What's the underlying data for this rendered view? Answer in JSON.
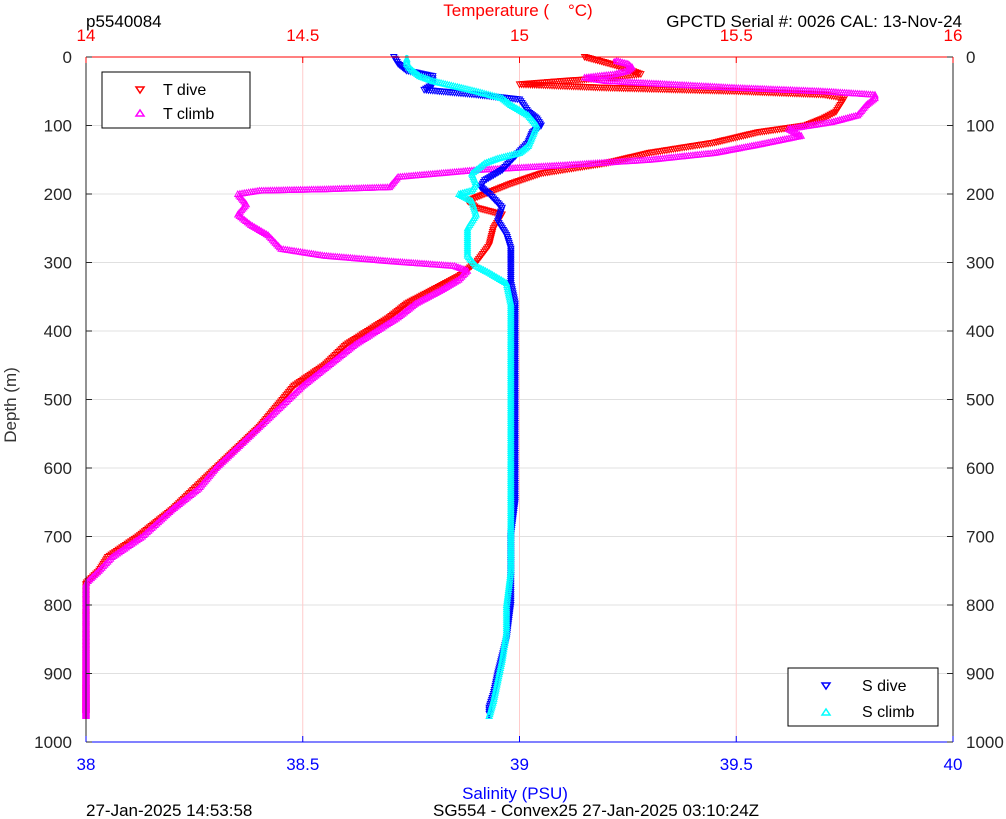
{
  "header": {
    "left": "p5540084",
    "right": "GPCTD Serial #: 0026 CAL: 13-Nov-24"
  },
  "footer": {
    "left": "27-Jan-2025 14:53:58",
    "center": "SG554 - Convex25 27-Jan-2025 03:10:24Z"
  },
  "colors": {
    "t_dive": "#ff0000",
    "t_climb": "#ff00ff",
    "s_dive": "#0000ff",
    "s_climb": "#00ffff",
    "temp_axis": "#ff0000",
    "sal_axis": "#0000ff",
    "temp_grid": "#ffcccc",
    "depth_grid": "#e0e0e0"
  },
  "chart_data": {
    "type": "scatter",
    "ylabel": "Depth (m)",
    "ylim": [
      1000,
      0
    ],
    "yticks": [
      "0",
      "100",
      "200",
      "300",
      "400",
      "500",
      "600",
      "700",
      "800",
      "900",
      "1000"
    ],
    "ytick_values": [
      0,
      100,
      200,
      300,
      400,
      500,
      600,
      700,
      800,
      900,
      1000
    ],
    "temperature_axis": {
      "label": "Temperature (    °C)",
      "position": "top",
      "lim": [
        14,
        16
      ],
      "ticks": [
        "14",
        "14.5",
        "15",
        "15.5",
        "16"
      ],
      "tick_values": [
        14,
        14.5,
        15,
        15.5,
        16
      ]
    },
    "salinity_axis": {
      "label": "Salinity (PSU)",
      "position": "bottom",
      "lim": [
        38,
        40
      ],
      "ticks": [
        "38",
        "38.5",
        "39",
        "39.5",
        "40"
      ],
      "tick_values": [
        38,
        38.5,
        39,
        39.5,
        40
      ]
    },
    "legend_temperature": {
      "placement": "top-left",
      "entries": [
        "T dive",
        "T climb"
      ]
    },
    "legend_salinity": {
      "placement": "bottom-right",
      "entries": [
        "S dive",
        "S climb"
      ]
    },
    "series": [
      {
        "name": "T dive",
        "axis": "temperature",
        "marker": "triangle-down",
        "points": [
          [
            15.15,
            0
          ],
          [
            15.18,
            5
          ],
          [
            15.22,
            12
          ],
          [
            15.25,
            18
          ],
          [
            15.28,
            25
          ],
          [
            15.22,
            30
          ],
          [
            15.1,
            35
          ],
          [
            15.0,
            40
          ],
          [
            15.2,
            45
          ],
          [
            15.5,
            50
          ],
          [
            15.7,
            55
          ],
          [
            15.75,
            60
          ],
          [
            15.74,
            70
          ],
          [
            15.73,
            80
          ],
          [
            15.7,
            90
          ],
          [
            15.66,
            100
          ],
          [
            15.55,
            110
          ],
          [
            15.45,
            125
          ],
          [
            15.3,
            140
          ],
          [
            15.2,
            155
          ],
          [
            15.05,
            170
          ],
          [
            14.98,
            185
          ],
          [
            14.92,
            200
          ],
          [
            14.88,
            210
          ],
          [
            14.9,
            220
          ],
          [
            14.96,
            230
          ],
          [
            14.94,
            250
          ],
          [
            14.93,
            275
          ],
          [
            14.9,
            300
          ],
          [
            14.86,
            320
          ],
          [
            14.8,
            340
          ],
          [
            14.74,
            360
          ],
          [
            14.7,
            380
          ],
          [
            14.65,
            400
          ],
          [
            14.6,
            420
          ],
          [
            14.55,
            450
          ],
          [
            14.48,
            480
          ],
          [
            14.44,
            510
          ],
          [
            14.4,
            540
          ],
          [
            14.35,
            570
          ],
          [
            14.3,
            600
          ],
          [
            14.25,
            630
          ],
          [
            14.2,
            660
          ],
          [
            14.12,
            700
          ],
          [
            14.05,
            730
          ],
          [
            14.03,
            750
          ],
          [
            13.98,
            780
          ],
          [
            13.92,
            810
          ],
          [
            13.82,
            840
          ],
          [
            13.7,
            870
          ],
          [
            13.55,
            900
          ],
          [
            13.42,
            920
          ],
          [
            13.25,
            940
          ],
          [
            13.1,
            955
          ],
          [
            13.02,
            962
          ]
        ]
      },
      {
        "name": "T climb",
        "axis": "temperature",
        "marker": "triangle-up",
        "points": [
          [
            13.0,
            962
          ],
          [
            13.08,
            955
          ],
          [
            13.25,
            940
          ],
          [
            13.42,
            920
          ],
          [
            13.55,
            900
          ],
          [
            13.7,
            870
          ],
          [
            13.82,
            840
          ],
          [
            13.92,
            810
          ],
          [
            13.98,
            780
          ],
          [
            14.03,
            750
          ],
          [
            14.06,
            730
          ],
          [
            14.13,
            700
          ],
          [
            14.2,
            660
          ],
          [
            14.26,
            630
          ],
          [
            14.3,
            600
          ],
          [
            14.35,
            570
          ],
          [
            14.4,
            540
          ],
          [
            14.45,
            510
          ],
          [
            14.5,
            480
          ],
          [
            14.56,
            450
          ],
          [
            14.62,
            420
          ],
          [
            14.67,
            400
          ],
          [
            14.72,
            380
          ],
          [
            14.76,
            360
          ],
          [
            14.82,
            340
          ],
          [
            14.86,
            325
          ],
          [
            14.88,
            312
          ],
          [
            14.85,
            305
          ],
          [
            14.7,
            298
          ],
          [
            14.55,
            290
          ],
          [
            14.45,
            280
          ],
          [
            14.42,
            260
          ],
          [
            14.38,
            245
          ],
          [
            14.35,
            230
          ],
          [
            14.37,
            215
          ],
          [
            14.35,
            200
          ],
          [
            14.4,
            195
          ],
          [
            14.55,
            193
          ],
          [
            14.7,
            190
          ],
          [
            14.72,
            175
          ],
          [
            14.9,
            165
          ],
          [
            15.1,
            158
          ],
          [
            15.3,
            150
          ],
          [
            15.45,
            140
          ],
          [
            15.55,
            128
          ],
          [
            15.65,
            115
          ],
          [
            15.62,
            105
          ],
          [
            15.72,
            95
          ],
          [
            15.78,
            85
          ],
          [
            15.8,
            70
          ],
          [
            15.82,
            60
          ],
          [
            15.82,
            55
          ],
          [
            15.7,
            50
          ],
          [
            15.5,
            45
          ],
          [
            15.2,
            35
          ],
          [
            15.15,
            30
          ],
          [
            15.22,
            25
          ],
          [
            15.25,
            20
          ],
          [
            15.26,
            15
          ],
          [
            15.25,
            10
          ],
          [
            15.22,
            5
          ]
        ]
      },
      {
        "name": "S dive",
        "axis": "salinity",
        "marker": "triangle-down",
        "points": [
          [
            38.71,
            0
          ],
          [
            38.72,
            10
          ],
          [
            38.74,
            20
          ],
          [
            38.8,
            28
          ],
          [
            38.8,
            40
          ],
          [
            38.78,
            48
          ],
          [
            38.9,
            55
          ],
          [
            39.0,
            62
          ],
          [
            39.02,
            80
          ],
          [
            39.04,
            90
          ],
          [
            39.05,
            100
          ],
          [
            39.03,
            110
          ],
          [
            39.02,
            125
          ],
          [
            38.99,
            145
          ],
          [
            38.96,
            165
          ],
          [
            38.92,
            180
          ],
          [
            38.91,
            190
          ],
          [
            38.93,
            200
          ],
          [
            38.96,
            220
          ],
          [
            38.95,
            240
          ],
          [
            38.97,
            260
          ],
          [
            38.98,
            280
          ],
          [
            38.98,
            300
          ],
          [
            38.98,
            330
          ],
          [
            38.99,
            360
          ],
          [
            38.99,
            400
          ],
          [
            38.99,
            450
          ],
          [
            38.99,
            500
          ],
          [
            38.99,
            550
          ],
          [
            38.99,
            600
          ],
          [
            38.99,
            650
          ],
          [
            38.98,
            700
          ],
          [
            38.98,
            750
          ],
          [
            38.98,
            800
          ],
          [
            38.97,
            850
          ],
          [
            38.95,
            900
          ],
          [
            38.94,
            930
          ],
          [
            38.93,
            950
          ],
          [
            38.93,
            962
          ]
        ]
      },
      {
        "name": "S climb",
        "axis": "salinity",
        "marker": "triangle-up",
        "points": [
          [
            38.93,
            962
          ],
          [
            38.94,
            940
          ],
          [
            38.95,
            910
          ],
          [
            38.96,
            880
          ],
          [
            38.97,
            840
          ],
          [
            38.97,
            800
          ],
          [
            38.98,
            750
          ],
          [
            38.98,
            700
          ],
          [
            38.98,
            650
          ],
          [
            38.98,
            600
          ],
          [
            38.98,
            550
          ],
          [
            38.98,
            500
          ],
          [
            38.98,
            450
          ],
          [
            38.98,
            400
          ],
          [
            38.98,
            360
          ],
          [
            38.97,
            330
          ],
          [
            38.93,
            315
          ],
          [
            38.9,
            305
          ],
          [
            38.88,
            290
          ],
          [
            38.88,
            270
          ],
          [
            38.88,
            250
          ],
          [
            38.9,
            230
          ],
          [
            38.89,
            210
          ],
          [
            38.86,
            200
          ],
          [
            38.89,
            195
          ],
          [
            38.9,
            185
          ],
          [
            38.89,
            170
          ],
          [
            38.92,
            155
          ],
          [
            38.95,
            148
          ],
          [
            39.0,
            140
          ],
          [
            39.02,
            130
          ],
          [
            39.03,
            115
          ],
          [
            39.04,
            100
          ],
          [
            39.02,
            85
          ],
          [
            38.98,
            70
          ],
          [
            38.96,
            60
          ],
          [
            38.9,
            50
          ],
          [
            38.8,
            35
          ],
          [
            38.77,
            28
          ],
          [
            38.75,
            18
          ],
          [
            38.74,
            10
          ],
          [
            38.74,
            0
          ]
        ]
      }
    ]
  }
}
